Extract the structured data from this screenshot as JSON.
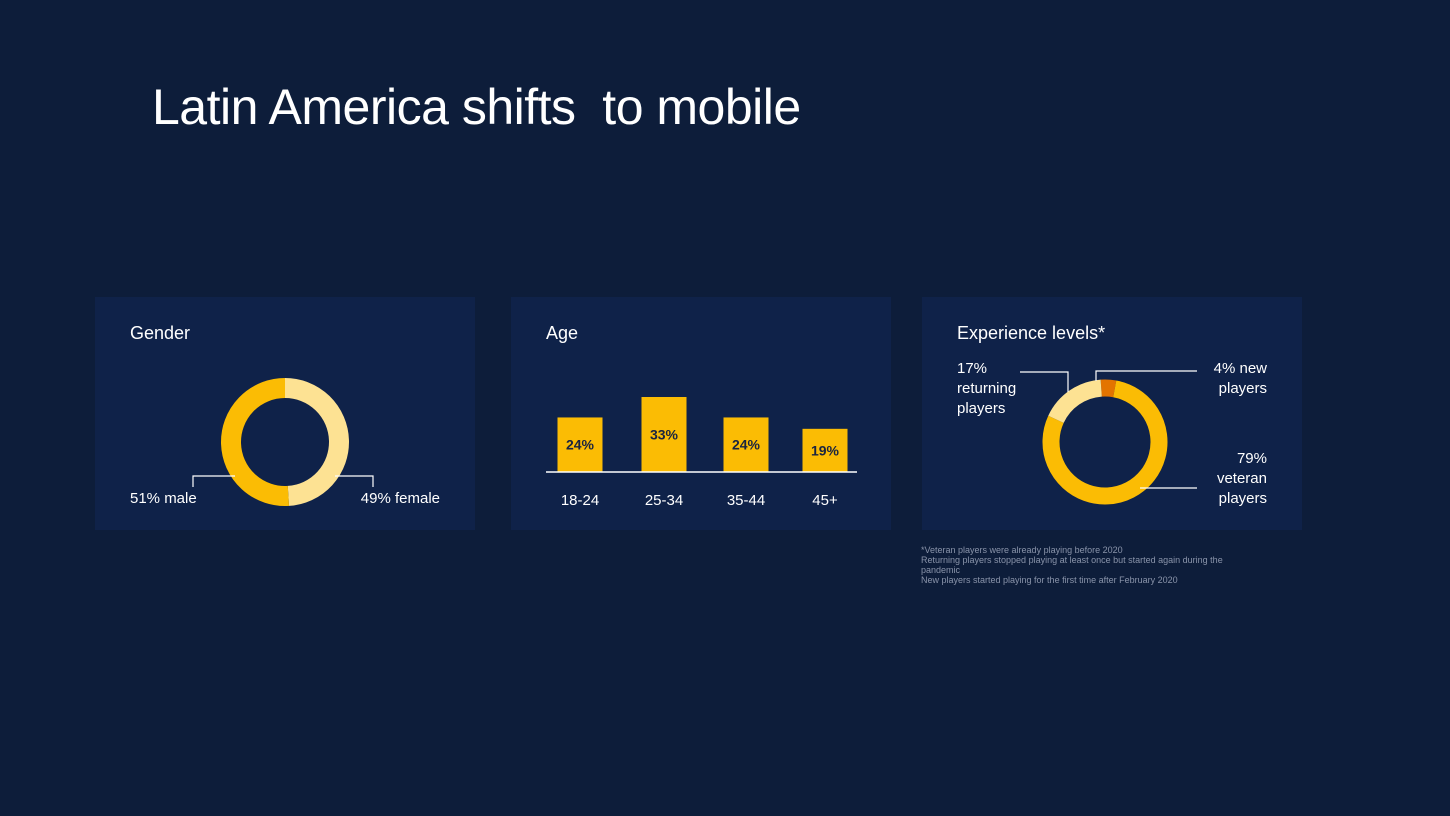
{
  "slide": {
    "title": "Latin America shifts  to mobile"
  },
  "colors": {
    "background": "#0d1d3a",
    "card": "#0f2249",
    "yellow": "#fbbc04",
    "light_yellow": "#fde293",
    "orange": "#e37400",
    "leader_line": "#ffffff"
  },
  "chart_data": [
    {
      "type": "pie",
      "title": "Gender",
      "slices": [
        {
          "label": "51% male",
          "value": 51,
          "color": "#fbbc04"
        },
        {
          "label": "49% female",
          "value": 49,
          "color": "#fde293"
        }
      ]
    },
    {
      "type": "bar",
      "title": "Age",
      "categories": [
        "18-24",
        "25-34",
        "35-44",
        "45+"
      ],
      "values": [
        24,
        33,
        24,
        19
      ],
      "value_labels": [
        "24%",
        "33%",
        "24%",
        "19%"
      ],
      "bar_color": "#fbbc04",
      "ylim": [
        0,
        33
      ]
    },
    {
      "type": "pie",
      "title": "Experience levels*",
      "slices": [
        {
          "label_lines": [
            "4% new",
            "players"
          ],
          "value": 4,
          "color": "#e37400"
        },
        {
          "label_lines": [
            "79%",
            "veteran",
            "players"
          ],
          "value": 79,
          "color": "#fbbc04"
        },
        {
          "label_lines": [
            "17%",
            "returning",
            "players"
          ],
          "value": 17,
          "color": "#fde293"
        }
      ]
    }
  ],
  "footnote": {
    "line1": "*Veteran players were already playing before 2020",
    "line2": "Returning players stopped playing at least once but started again during the pandemic",
    "line3": "New players started playing for the first time after February 2020"
  }
}
